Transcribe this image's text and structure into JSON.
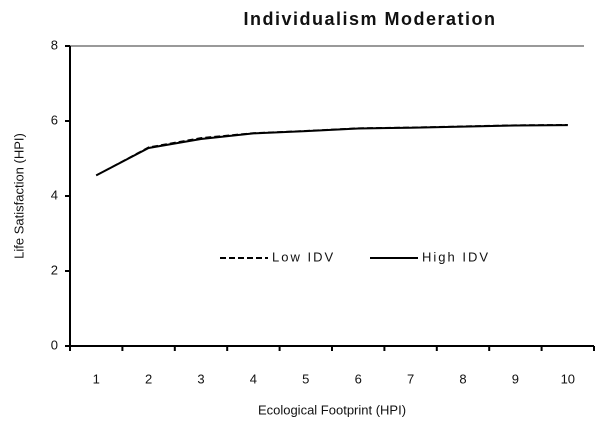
{
  "chart_data": {
    "type": "line",
    "title": "Individualism Moderation",
    "x_label": "Ecological Footprint (HPI)",
    "y_label": "Life Satisfaction (HPI)",
    "categories": [
      "1",
      "2",
      "3",
      "4",
      "5",
      "6",
      "7",
      "8",
      "9",
      "10"
    ],
    "series": [
      {
        "name": "Low IDV",
        "color": "#000000",
        "dash": true,
        "values": [
          4.55,
          5.3,
          5.55,
          5.68,
          5.74,
          5.81,
          5.83,
          5.86,
          5.89,
          5.9
        ]
      },
      {
        "name": "High IDV",
        "color": "#000000",
        "dash": false,
        "values": [
          4.55,
          5.28,
          5.52,
          5.67,
          5.73,
          5.8,
          5.82,
          5.85,
          5.88,
          5.89
        ]
      }
    ],
    "ylim": [
      0,
      8
    ],
    "yticks": [
      0,
      2,
      4,
      6,
      8
    ]
  }
}
